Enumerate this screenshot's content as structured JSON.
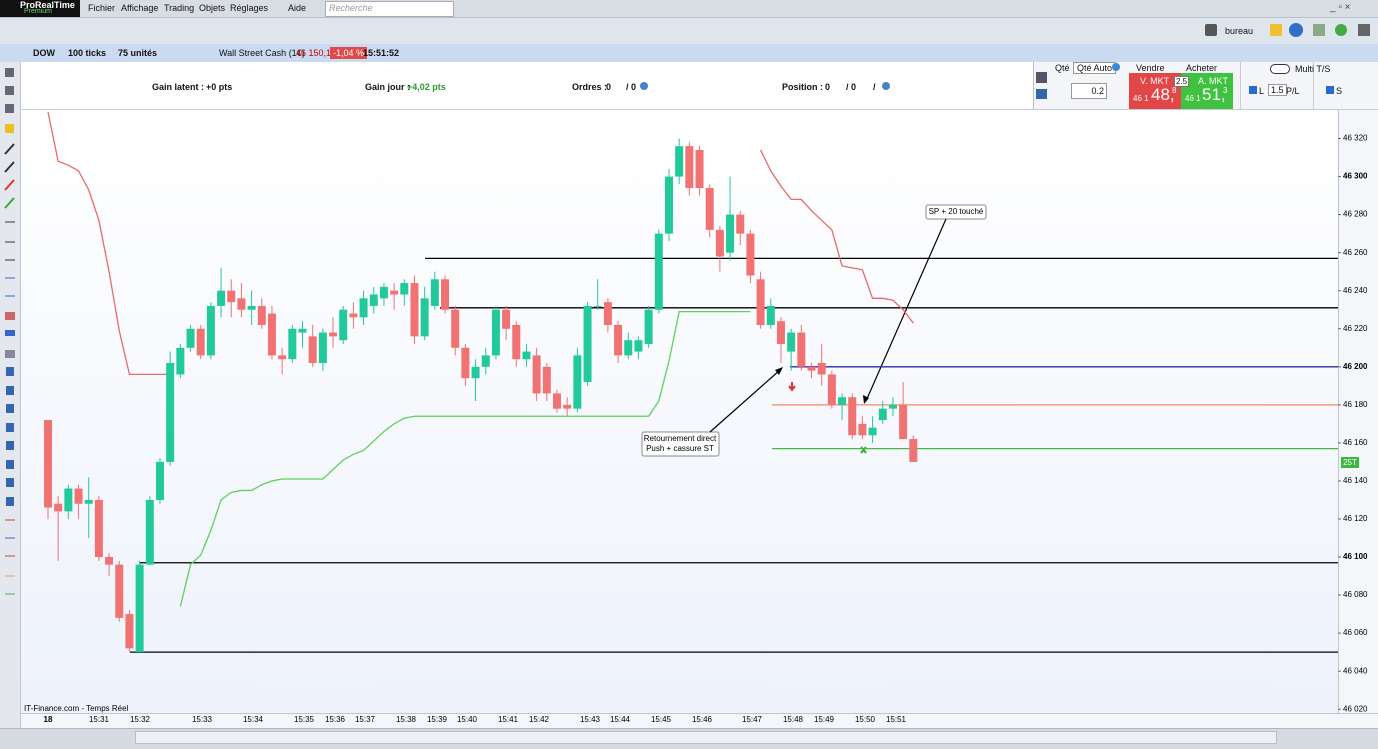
{
  "app": {
    "title": "ProRealTime",
    "edition": "Premium",
    "menu": [
      "Fichier",
      "Affichage",
      "Trading",
      "Objets",
      "Réglages",
      "Aide"
    ],
    "search": "Recherche",
    "workspace": "bureau"
  },
  "toolbar": {
    "symbol": "DOW",
    "interval": "100 ticks",
    "units": "75 unités",
    "instrument": "Wall Street Cash (1€)",
    "price": "46 150,1",
    "change": "-1,04 %",
    "time": "15:51:52"
  },
  "account_bar": {
    "gain_latent_label": "Gain latent :",
    "gain_latent": "+0 pts",
    "gain_jour_label": "Gain jour :",
    "gain_jour": "+4,02 pts",
    "ordres_label": "Ordres :",
    "ordres": "0",
    "ordres_total": "/ 0",
    "position_label": "Position :",
    "position": "0",
    "position_total": "/ 0",
    "position_sep": "/"
  },
  "order_panel": {
    "qty_label": "Qté",
    "qty_auto": "Qté Auto",
    "qty": "0.2",
    "sell": "Vendre",
    "buy": "Acheter",
    "sell_type": "V. MKT",
    "buy_type": "A. MKT",
    "sell_prefix": "46 1",
    "sell_big": "48,",
    "sell_small": "8",
    "spread": "2.5",
    "buy_prefix": "46 1",
    "buy_big": "51,",
    "buy_small": "3",
    "l_label": "L",
    "l_value": "1.5",
    "pl_label": "P/L",
    "s_label": "S",
    "multi": "Multi T/S"
  },
  "chart_data": {
    "type": "candlestick",
    "up_color": "#22c99b",
    "down_color": "#f07272",
    "open": [
      46172,
      46128,
      46124,
      46136,
      46128,
      46130,
      46100,
      46096,
      46070,
      46050,
      46096,
      46130,
      46150,
      46196,
      46210,
      46220,
      46206,
      46232,
      46240,
      46236,
      46230,
      46232,
      46228,
      46206,
      46204,
      46218,
      46216,
      46202,
      46218,
      46214,
      46228,
      46226,
      46232,
      46236,
      46240,
      46238,
      46244,
      46216,
      46232,
      46246,
      46230,
      46210,
      46194,
      46200,
      46206,
      46230,
      46222,
      46204,
      46206,
      46200,
      46186,
      46180,
      46178,
      46192,
      46232,
      46234,
      46222,
      46206,
      46208,
      46212,
      46230,
      46270,
      46300,
      46316,
      46314,
      46294,
      46272,
      46260,
      46280,
      46270,
      46246,
      46222,
      46224,
      46208,
      46218,
      46200,
      46202,
      46196,
      46180,
      46184,
      46170,
      46164,
      46172,
      46178,
      46180,
      46162
    ],
    "high": [
      46172,
      46132,
      46138,
      46138,
      46142,
      46132,
      46102,
      46098,
      46072,
      46098,
      46132,
      46152,
      46208,
      46212,
      46222,
      46222,
      46234,
      46252,
      46246,
      46244,
      46240,
      46236,
      46232,
      46210,
      46222,
      46224,
      46222,
      46220,
      46226,
      46232,
      46234,
      46240,
      46242,
      46244,
      46244,
      46246,
      46248,
      46242,
      46250,
      46248,
      46232,
      46212,
      46204,
      46210,
      46232,
      46232,
      46224,
      46212,
      46210,
      46202,
      46188,
      46184,
      46210,
      46234,
      46246,
      46236,
      46224,
      46218,
      46216,
      46232,
      46272,
      46304,
      46320,
      46318,
      46316,
      46296,
      46274,
      46300,
      46282,
      46272,
      46250,
      46236,
      46226,
      46220,
      46222,
      46202,
      46212,
      46198,
      46186,
      46186,
      46174,
      46174,
      46182,
      46184,
      46192,
      46164
    ],
    "low": [
      46120,
      46098,
      46120,
      46120,
      46110,
      46098,
      46090,
      46066,
      46050,
      46050,
      46096,
      46128,
      46148,
      46194,
      46208,
      46204,
      46204,
      46226,
      46226,
      46226,
      46222,
      46220,
      46204,
      46196,
      46202,
      46210,
      46200,
      46198,
      46210,
      46212,
      46220,
      46222,
      46228,
      46232,
      46230,
      46232,
      46212,
      46214,
      46230,
      46228,
      46206,
      46190,
      46182,
      46196,
      46204,
      46214,
      46200,
      46200,
      46182,
      46182,
      46176,
      46174,
      46176,
      46190,
      46230,
      46218,
      46202,
      46204,
      46204,
      46210,
      46228,
      46266,
      46296,
      46290,
      46290,
      46268,
      46250,
      46256,
      46264,
      46244,
      46220,
      46220,
      46202,
      46198,
      46198,
      46194,
      46190,
      46178,
      46172,
      46162,
      46162,
      46160,
      46170,
      46174,
      46162,
      46150
    ],
    "close": [
      46126,
      46124,
      46136,
      46128,
      46130,
      46100,
      46096,
      46068,
      46052,
      46096,
      46130,
      46150,
      46202,
      46210,
      46220,
      46206,
      46232,
      46240,
      46234,
      46230,
      46232,
      46222,
      46206,
      46204,
      46220,
      46220,
      46202,
      46218,
      46216,
      46230,
      46226,
      46236,
      46238,
      46242,
      46238,
      46244,
      46216,
      46236,
      46246,
      46230,
      46210,
      46194,
      46200,
      46206,
      46230,
      46220,
      46204,
      46208,
      46186,
      46186,
      46178,
      46178,
      46206,
      46232,
      46232,
      46222,
      46206,
      46214,
      46214,
      46230,
      46270,
      46300,
      46316,
      46294,
      46294,
      46272,
      46258,
      46280,
      46270,
      46248,
      46222,
      46232,
      46212,
      46218,
      46200,
      46198,
      46196,
      46180,
      46184,
      46164,
      46164,
      46168,
      46178,
      46180,
      46162,
      46150
    ],
    "lines": [
      {
        "color": "#e86a6a",
        "values": [
          46334,
          46308,
          46306,
          46303,
          46293,
          46277,
          46250,
          46219,
          46196,
          46196,
          46196,
          46196,
          46196,
          null,
          null,
          null,
          null,
          null,
          null,
          null,
          null,
          null,
          null,
          null,
          null,
          null,
          null,
          null,
          null,
          null,
          null,
          null,
          null,
          null,
          null,
          null,
          null,
          null,
          null,
          null,
          null,
          null,
          null,
          null,
          null,
          null,
          null,
          null,
          null,
          null,
          null,
          null,
          null,
          null,
          null,
          null,
          null,
          null,
          null,
          null,
          null,
          null,
          null,
          null,
          null,
          null,
          null,
          null,
          null,
          null,
          46314,
          46303,
          46295,
          46288,
          46288,
          46282,
          46277,
          46272,
          46253,
          46252,
          46251,
          46236,
          46236,
          46235,
          46230,
          46223
        ]
      },
      {
        "color": "#5fd05f",
        "values": [
          null,
          null,
          null,
          null,
          null,
          null,
          null,
          null,
          null,
          null,
          null,
          null,
          null,
          46074,
          46096,
          46101,
          46114,
          46130,
          46134,
          46135,
          46135,
          46138,
          46140,
          46141,
          46141,
          46141,
          46141,
          46141,
          46146,
          46151,
          46154,
          46156,
          46161,
          46166,
          46170,
          46173,
          46174,
          46174,
          46174,
          46174,
          46174,
          46174,
          46174,
          46174,
          46174,
          46174,
          46174,
          46174,
          46174,
          46174,
          46174,
          46174,
          46174,
          46174,
          46174,
          46174,
          46174,
          46174,
          46174,
          46174,
          46182,
          46203,
          46229,
          46229,
          46229,
          46229,
          46229,
          46229,
          46229,
          46229,
          null,
          null,
          null,
          null,
          null,
          null,
          null,
          null,
          null,
          null,
          null,
          null,
          null,
          null,
          null,
          null
        ]
      }
    ],
    "levels": [
      {
        "value": 46257,
        "color": "#000000"
      },
      {
        "value": 46231,
        "color": "#000000"
      },
      {
        "value": 46097,
        "color": "#000000"
      },
      {
        "value": 46050,
        "color": "#000000"
      },
      {
        "value": 46200,
        "color": "#2a2aa8"
      },
      {
        "value": 46180,
        "color": "#f08a6a"
      },
      {
        "value": 46157,
        "color": "#45b845"
      }
    ],
    "ylim": [
      46018,
      46335
    ],
    "yticks": [
      {
        "value": 46320,
        "label": "46 320"
      },
      {
        "value": 46300,
        "label": "46 300"
      },
      {
        "value": 46280,
        "label": "46 280"
      },
      {
        "value": 46260,
        "label": "46 260"
      },
      {
        "value": 46240,
        "label": "46 240"
      },
      {
        "value": 46220,
        "label": "46 220"
      },
      {
        "value": 46200,
        "label": "46 200"
      },
      {
        "value": 46180,
        "label": "46 180"
      },
      {
        "value": 46160,
        "label": "46 160"
      },
      {
        "value": 46140,
        "label": "46 140"
      },
      {
        "value": 46120,
        "label": "46 120"
      },
      {
        "value": 46100,
        "label": "46 100"
      },
      {
        "value": 46080,
        "label": "46 080"
      },
      {
        "value": 46060,
        "label": "46 060"
      },
      {
        "value": 46040,
        "label": "46 040"
      },
      {
        "value": 46020,
        "label": "46 020"
      }
    ],
    "xlabels": [
      "18",
      "15:31",
      "15:32",
      "15:33",
      "15:34",
      "15:35",
      "15:36",
      "15:37",
      "15:38",
      "15:39",
      "15:40",
      "15:41",
      "15:42",
      "15:43",
      "15:44",
      "15:45",
      "15:46",
      "15:47",
      "15:48",
      "15:49",
      "15:50",
      "15:51"
    ],
    "annotations": [
      "SP + 20 touché",
      "Retournement direct",
      "Push + cassure ST"
    ],
    "tag": "25T",
    "source": "IT-Finance.com - Temps Réel"
  }
}
